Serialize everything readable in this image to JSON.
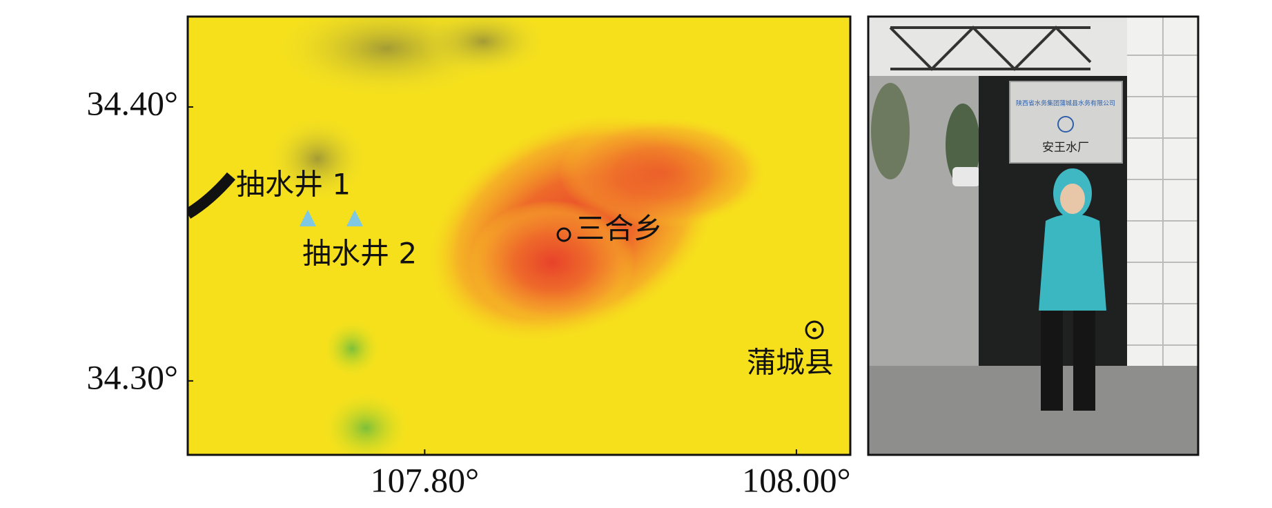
{
  "map": {
    "xlim": [
      107.6725,
      108.029
    ],
    "ylim": [
      34.273,
      34.433
    ],
    "x_ticks": [
      {
        "value": 107.8,
        "label": "107.80°"
      },
      {
        "value": 108.0,
        "label": "108.00°"
      }
    ],
    "y_ticks": [
      {
        "value": 34.4,
        "label": "34.40°"
      },
      {
        "value": 34.3,
        "label": "34.30°"
      }
    ],
    "places": [
      "抽水井 1",
      "抽水井 2",
      "三合乡",
      "蒲城县"
    ]
  },
  "photo": {
    "sign_company": "陕西省水务集团蒲城县水务有限公司",
    "sign_name": "安王水厂"
  }
}
